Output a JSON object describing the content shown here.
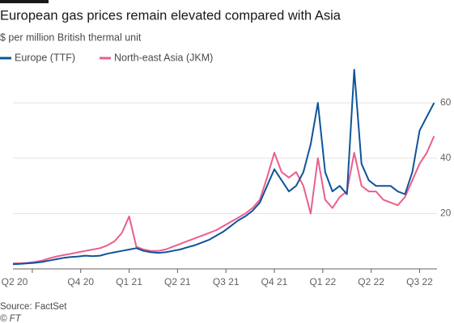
{
  "chart_data": {
    "type": "line",
    "title": "European gas prices remain elevated compared with Asia",
    "subtitle": "$ per million British thermal unit",
    "source": "Source: FactSet",
    "credit": "© FT",
    "xlim": [
      0.6,
      9.36
    ],
    "xticks": [
      {
        "value": 0,
        "label": "Q2 20"
      },
      {
        "value": 1,
        "label": null
      },
      {
        "value": 2,
        "label": "Q4 20"
      },
      {
        "value": 3,
        "label": "Q1 21"
      },
      {
        "value": 4,
        "label": "Q2 21"
      },
      {
        "value": 5,
        "label": "Q3 21"
      },
      {
        "value": 6,
        "label": "Q4 21"
      },
      {
        "value": 7,
        "label": "Q1 22"
      },
      {
        "value": 8,
        "label": "Q2 22"
      },
      {
        "value": 9,
        "label": "Q3 22"
      }
    ],
    "ylim": [
      0,
      75
    ],
    "yticks": [
      20,
      40,
      60
    ],
    "grid": true,
    "legend": "top-left",
    "x": [
      0.6,
      0.75,
      0.9,
      1.05,
      1.2,
      1.35,
      1.5,
      1.65,
      1.8,
      1.95,
      2.1,
      2.25,
      2.4,
      2.55,
      2.7,
      2.85,
      3.0,
      3.15,
      3.3,
      3.45,
      3.6,
      3.75,
      3.9,
      4.05,
      4.2,
      4.35,
      4.5,
      4.65,
      4.8,
      4.95,
      5.1,
      5.25,
      5.4,
      5.55,
      5.7,
      5.85,
      6.0,
      6.15,
      6.3,
      6.45,
      6.6,
      6.75,
      6.9,
      7.05,
      7.2,
      7.35,
      7.5,
      7.65,
      7.8,
      7.95,
      8.1,
      8.25,
      8.4,
      8.55,
      8.7,
      8.85,
      9.0,
      9.15,
      9.3
    ],
    "series": [
      {
        "name": "Europe (TTF)",
        "color": "#0f5499",
        "values": [
          1.7,
          1.8,
          2,
          2.2,
          2.5,
          3,
          3.5,
          4,
          4.3,
          4.5,
          4.8,
          4.6,
          4.8,
          5.5,
          6,
          6.5,
          7,
          7.5,
          6.5,
          6,
          5.8,
          6,
          6.5,
          7,
          7.8,
          8.5,
          9.5,
          10.5,
          12,
          13.5,
          15.5,
          17.5,
          19,
          21,
          24,
          30,
          36,
          32,
          28,
          30,
          35,
          45,
          60,
          35,
          28,
          30,
          27,
          72,
          38,
          32,
          30,
          30,
          30,
          28,
          27,
          35,
          50,
          55,
          60
        ]
      },
      {
        "name": "North-east Asia (JKM)",
        "color": "#eb5e8d",
        "values": [
          2,
          2,
          2.2,
          2.5,
          3,
          3.8,
          4.5,
          5,
          5.5,
          6,
          6.5,
          7,
          7.5,
          8.5,
          10,
          13,
          19,
          8,
          7,
          6.5,
          6.5,
          7,
          8,
          9,
          10,
          11,
          12,
          13,
          14,
          15.5,
          17,
          18.5,
          20,
          22,
          25,
          33,
          42,
          35,
          33,
          35,
          30,
          20,
          40,
          25,
          22,
          26,
          28,
          42,
          30,
          28,
          28,
          25,
          24,
          23,
          26,
          32,
          38,
          42,
          48
        ]
      }
    ]
  }
}
